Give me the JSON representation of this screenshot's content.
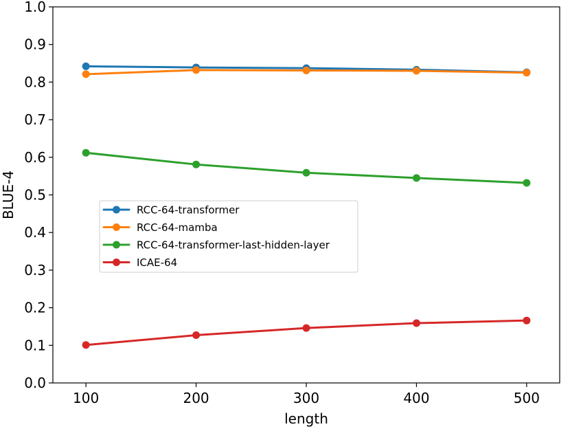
{
  "chart_data": {
    "type": "line",
    "title": "",
    "xlabel": "length",
    "ylabel": "BLUE-4",
    "x": [
      100,
      200,
      300,
      400,
      500
    ],
    "xlim": [
      70,
      530
    ],
    "ylim": [
      0.0,
      1.0
    ],
    "xticks": [
      100,
      200,
      300,
      400,
      500
    ],
    "xtick_labels": [
      "100",
      "200",
      "300",
      "400",
      "500"
    ],
    "yticks": [
      0.0,
      0.1,
      0.2,
      0.3,
      0.4,
      0.5,
      0.6,
      0.7,
      0.8,
      0.9,
      1.0
    ],
    "ytick_labels": [
      "0.0",
      "0.1",
      "0.2",
      "0.3",
      "0.4",
      "0.5",
      "0.6",
      "0.7",
      "0.8",
      "0.9",
      "1.0"
    ],
    "grid": false,
    "legend_position": "center-left",
    "series": [
      {
        "name": "RCC-64-transformer",
        "color": "#1f77b4",
        "values": [
          0.842,
          0.839,
          0.837,
          0.833,
          0.826
        ]
      },
      {
        "name": "RCC-64-mamba",
        "color": "#ff7f0e",
        "values": [
          0.821,
          0.832,
          0.831,
          0.83,
          0.825
        ]
      },
      {
        "name": "RCC-64-transformer-last-hidden-layer",
        "color": "#2ca02c",
        "values": [
          0.612,
          0.581,
          0.559,
          0.545,
          0.532
        ]
      },
      {
        "name": "ICAE-64",
        "color": "#d62728",
        "values": [
          0.101,
          0.127,
          0.146,
          0.159,
          0.166
        ]
      }
    ]
  }
}
